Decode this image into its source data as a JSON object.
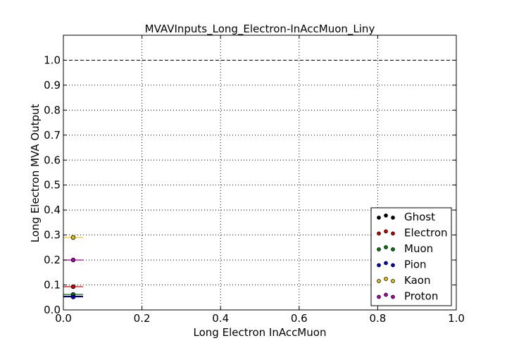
{
  "chart_data": {
    "type": "scatter",
    "title": "MVAVInputs_Long_Electron-InAccMuon_Liny",
    "xlabel": "Long Electron InAccMuon",
    "ylabel": "Long Electron MVA Output",
    "xlim": [
      0.0,
      1.0
    ],
    "ylim": [
      0.0,
      1.1
    ],
    "x_ticks": [
      "0.0",
      "0.2",
      "0.4",
      "0.6",
      "0.8",
      "1.0"
    ],
    "y_ticks": [
      "0.0",
      "0.1",
      "0.2",
      "0.3",
      "0.4",
      "0.5",
      "0.6",
      "0.7",
      "0.8",
      "0.9",
      "1.0"
    ],
    "grid": true,
    "legend_position": "lower-right",
    "reference_line": {
      "y": 1.0,
      "style": "dashed"
    },
    "series": [
      {
        "name": "Ghost",
        "color": "#000000",
        "x": 0.025,
        "x_err": 0.025,
        "y": 0.055
      },
      {
        "name": "Electron",
        "color": "#d00000",
        "x": 0.025,
        "x_err": 0.025,
        "y": 0.093
      },
      {
        "name": "Muon",
        "color": "#007a00",
        "x": 0.025,
        "x_err": 0.025,
        "y": 0.062
      },
      {
        "name": "Pion",
        "color": "#0000c8",
        "x": 0.025,
        "x_err": 0.025,
        "y": 0.052
      },
      {
        "name": "Kaon",
        "color": "#e8c000",
        "x": 0.025,
        "x_err": 0.025,
        "y": 0.29
      },
      {
        "name": "Proton",
        "color": "#b000b0",
        "x": 0.025,
        "x_err": 0.025,
        "y": 0.2
      }
    ]
  }
}
